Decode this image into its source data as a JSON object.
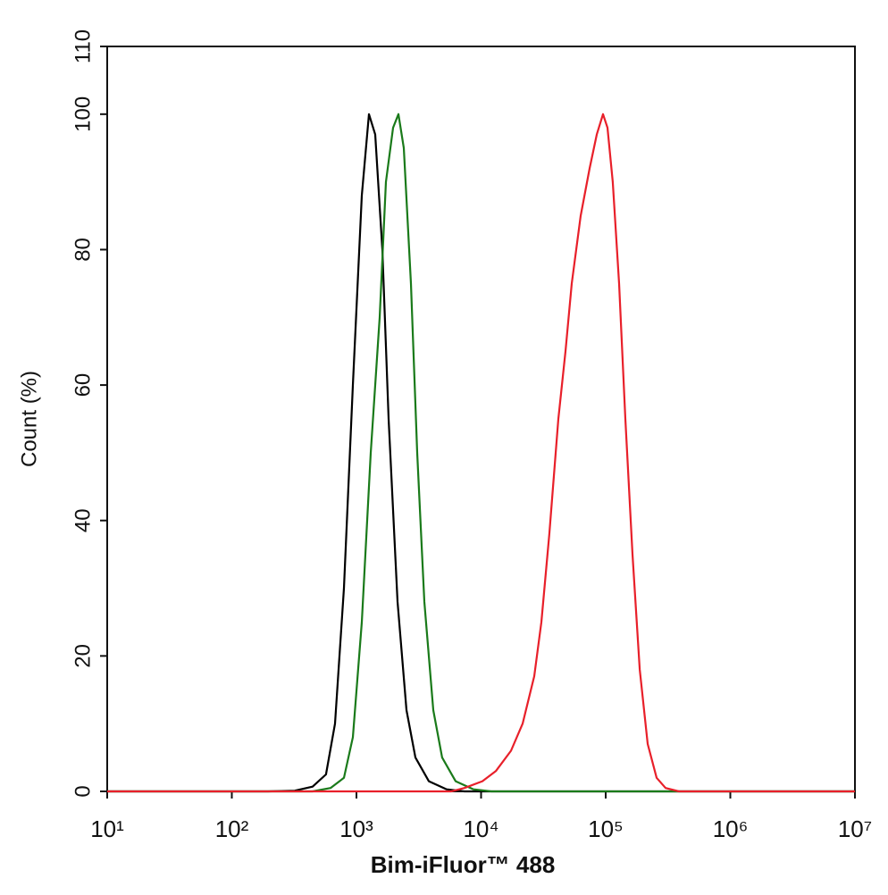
{
  "chart_data": {
    "type": "line",
    "xlabel": "Bim-iFluor™ 488",
    "ylabel": "Count  (%)",
    "xscale": "log",
    "xlim": [
      10,
      10000000
    ],
    "xticks": [
      {
        "value": 10,
        "label": "10¹"
      },
      {
        "value": 100,
        "label": "10²"
      },
      {
        "value": 1000,
        "label": "10³"
      },
      {
        "value": 10000,
        "label": "10⁴"
      },
      {
        "value": 100000,
        "label": "10⁵"
      },
      {
        "value": 1000000,
        "label": "10⁶"
      },
      {
        "value": 10000000,
        "label": "10⁷"
      }
    ],
    "ylim": [
      0,
      110
    ],
    "yticks": [
      0,
      20,
      40,
      60,
      80,
      100,
      110
    ],
    "series": [
      {
        "color": "#000000",
        "x": [
          10,
          195,
          320,
          445,
          570,
          673,
          794,
          936,
          1105,
          1260,
          1415,
          1615,
          1813,
          2138,
          2520,
          2972,
          3808,
          5300,
          7360,
          10000000
        ],
        "values": [
          0,
          0,
          0.1,
          0.7,
          2.5,
          10,
          30,
          60,
          88,
          100,
          97,
          80,
          55,
          28,
          12,
          5,
          1.5,
          0.3,
          0,
          0
        ]
      },
      {
        "color": "#1a7a1a",
        "x": [
          10,
          445,
          620,
          794,
          936,
          1105,
          1302,
          1535,
          1725,
          1968,
          2173,
          2400,
          2737,
          3070,
          3505,
          4133,
          4873,
          6250,
          8690,
          12080,
          10000000
        ],
        "values": [
          0,
          0,
          0.5,
          2,
          8,
          25,
          50,
          70,
          90,
          98,
          100,
          95,
          75,
          50,
          28,
          12,
          5,
          1.5,
          0.3,
          0,
          0
        ]
      },
      {
        "color": "#e8202a",
        "x": [
          10,
          5754,
          7360,
          10250,
          13130,
          17380,
          21540,
          26700,
          30480,
          35320,
          41690,
          47550,
          53400,
          62950,
          74300,
          84750,
          95100,
          103300,
          114000,
          128100,
          143800,
          164200,
          187400,
          217300,
          256400,
          302200,
          387000,
          10000000
        ],
        "values": [
          0,
          0,
          0.5,
          1.5,
          3,
          6,
          10,
          17,
          25,
          38,
          55,
          65,
          75,
          85,
          92,
          97,
          100,
          98,
          90,
          75,
          55,
          35,
          18,
          7,
          2,
          0.5,
          0,
          0
        ]
      }
    ]
  }
}
